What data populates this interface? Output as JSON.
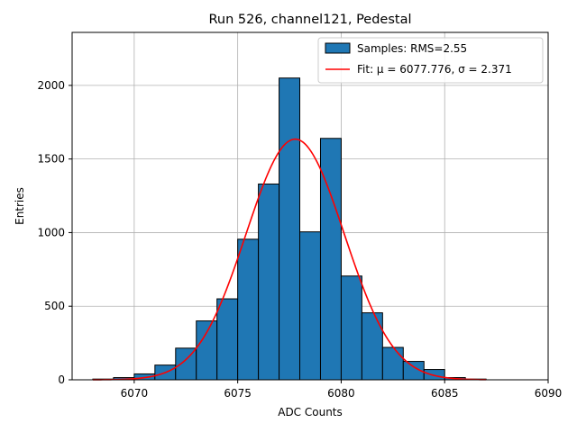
{
  "chart_data": {
    "type": "bar",
    "title": "Run 526, channel121, Pedestal",
    "xlabel": "ADC Counts",
    "ylabel": "Entries",
    "xlim": [
      6067,
      6090
    ],
    "ylim": [
      0,
      2360
    ],
    "xticks": [
      6070,
      6075,
      6080,
      6085,
      6090
    ],
    "yticks": [
      0,
      500,
      1000,
      1500,
      2000
    ],
    "grid": true,
    "legend_position": "top-right",
    "histogram": {
      "name": "Samples: RMS=2.55",
      "color": "#1f77b4",
      "edge_color": "#000000",
      "bins": [
        {
          "x0": 6068,
          "x1": 6069,
          "count": 5
        },
        {
          "x0": 6069,
          "x1": 6070,
          "count": 15
        },
        {
          "x0": 6070,
          "x1": 6071,
          "count": 40
        },
        {
          "x0": 6071,
          "x1": 6072,
          "count": 100
        },
        {
          "x0": 6072,
          "x1": 6073,
          "count": 215
        },
        {
          "x0": 6073,
          "x1": 6074,
          "count": 400
        },
        {
          "x0": 6074,
          "x1": 6075,
          "count": 550
        },
        {
          "x0": 6075,
          "x1": 6076,
          "count": 955
        },
        {
          "x0": 6076,
          "x1": 6077,
          "count": 1330
        },
        {
          "x0": 6077,
          "x1": 6078,
          "count": 2050
        },
        {
          "x0": 6078,
          "x1": 6079,
          "count": 1005
        },
        {
          "x0": 6079,
          "x1": 6080,
          "count": 1640
        },
        {
          "x0": 6080,
          "x1": 6081,
          "count": 705
        },
        {
          "x0": 6081,
          "x1": 6082,
          "count": 455
        },
        {
          "x0": 6082,
          "x1": 6083,
          "count": 220
        },
        {
          "x0": 6083,
          "x1": 6084,
          "count": 125
        },
        {
          "x0": 6084,
          "x1": 6085,
          "count": 70
        },
        {
          "x0": 6085,
          "x1": 6086,
          "count": 15
        },
        {
          "x0": 6086,
          "x1": 6087,
          "count": 5
        }
      ]
    },
    "fit": {
      "name": "Fit: μ = 6077.776, σ = 2.371",
      "color": "#ff0000",
      "mu": 6077.776,
      "sigma": 2.371,
      "amplitude": 1635,
      "x_range": [
        6068,
        6087
      ]
    }
  }
}
